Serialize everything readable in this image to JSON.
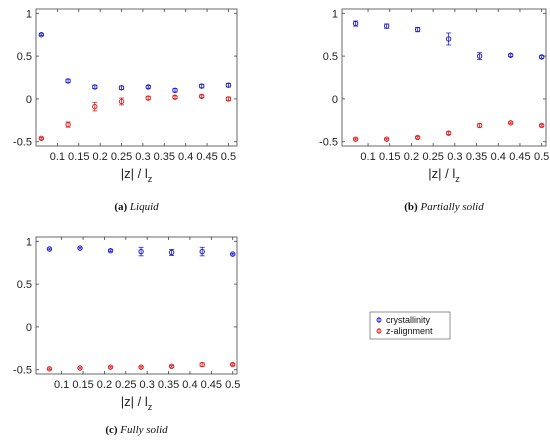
{
  "colors": {
    "crystallinity": "#2222cc",
    "z_alignment": "#dd2222",
    "axes": "#444444"
  },
  "legend": {
    "placement": "center-right",
    "entries": [
      {
        "name": "crystallinity",
        "color": "#2222cc"
      },
      {
        "name": "z-alignment",
        "color": "#dd2222"
      }
    ]
  },
  "chart_data": [
    {
      "type": "scatter",
      "panel": "a",
      "caption_label": "(a)",
      "caption_text": "Liquid",
      "xlabel_main": "|z| / l",
      "xlabel_sub": "z",
      "xlim": [
        0.05,
        0.52
      ],
      "ylim": [
        -0.55,
        1.05
      ],
      "xticks": [
        0.1,
        0.15,
        0.2,
        0.25,
        0.3,
        0.35,
        0.4,
        0.45,
        0.5
      ],
      "yticks": [
        -0.5,
        0,
        0.5,
        1
      ],
      "series": [
        {
          "name": "crystallinity",
          "x": [
            0.0625,
            0.125,
            0.1875,
            0.25,
            0.3125,
            0.375,
            0.4375,
            0.5
          ],
          "y": [
            0.75,
            0.21,
            0.14,
            0.13,
            0.14,
            0.1,
            0.15,
            0.16
          ],
          "err": [
            0.01,
            0.02,
            0.02,
            0.02,
            0.015,
            0.02,
            0.02,
            0.02
          ]
        },
        {
          "name": "z-alignment",
          "x": [
            0.0625,
            0.125,
            0.1875,
            0.25,
            0.3125,
            0.375,
            0.4375,
            0.5
          ],
          "y": [
            -0.46,
            -0.3,
            -0.09,
            -0.03,
            0.01,
            0.02,
            0.03,
            0.0
          ],
          "err": [
            0.01,
            0.03,
            0.05,
            0.04,
            0.02,
            0.015,
            0.015,
            0.02
          ]
        }
      ]
    },
    {
      "type": "scatter",
      "panel": "b",
      "caption_label": "(b)",
      "caption_text": "Partially solid",
      "xlabel_main": "|z| / l",
      "xlabel_sub": "z",
      "xlim": [
        0.04,
        0.51
      ],
      "ylim": [
        -0.55,
        1.05
      ],
      "xticks": [
        0.1,
        0.15,
        0.2,
        0.25,
        0.3,
        0.35,
        0.4,
        0.45,
        0.5
      ],
      "yticks": [
        -0.5,
        0,
        0.5,
        1
      ],
      "series": [
        {
          "name": "crystallinity",
          "x": [
            0.0714,
            0.1429,
            0.2143,
            0.2857,
            0.3571,
            0.4286,
            0.5
          ],
          "y": [
            0.88,
            0.85,
            0.81,
            0.7,
            0.5,
            0.51,
            0.49
          ],
          "err": [
            0.03,
            0.025,
            0.025,
            0.07,
            0.04,
            0.015,
            0.015
          ]
        },
        {
          "name": "z-alignment",
          "x": [
            0.0714,
            0.1429,
            0.2143,
            0.2857,
            0.3571,
            0.4286,
            0.5
          ],
          "y": [
            -0.47,
            -0.47,
            -0.45,
            -0.4,
            -0.31,
            -0.28,
            -0.31
          ],
          "err": [
            0.01,
            0.01,
            0.01,
            0.015,
            0.02,
            0.01,
            0.01
          ]
        }
      ]
    },
    {
      "type": "scatter",
      "panel": "c",
      "caption_label": "(c)",
      "caption_text": "Fully solid",
      "xlabel_main": "|z| / l",
      "xlabel_sub": "z",
      "xlim": [
        0.04,
        0.51
      ],
      "ylim": [
        -0.55,
        1.05
      ],
      "xticks": [
        0.1,
        0.15,
        0.2,
        0.25,
        0.3,
        0.35,
        0.4,
        0.45,
        0.5
      ],
      "yticks": [
        -0.5,
        0,
        0.5,
        1
      ],
      "series": [
        {
          "name": "crystallinity",
          "x": [
            0.0714,
            0.1429,
            0.2143,
            0.2857,
            0.3571,
            0.4286,
            0.5
          ],
          "y": [
            0.91,
            0.92,
            0.89,
            0.88,
            0.87,
            0.88,
            0.85
          ],
          "err": [
            0.01,
            0.01,
            0.01,
            0.05,
            0.035,
            0.05,
            0.01
          ]
        },
        {
          "name": "z-alignment",
          "x": [
            0.0714,
            0.1429,
            0.2143,
            0.2857,
            0.3571,
            0.4286,
            0.5
          ],
          "y": [
            -0.49,
            -0.48,
            -0.47,
            -0.47,
            -0.46,
            -0.44,
            -0.44
          ],
          "err": [
            0.01,
            0.01,
            0.01,
            0.01,
            0.01,
            0.02,
            0.01
          ]
        }
      ]
    }
  ]
}
